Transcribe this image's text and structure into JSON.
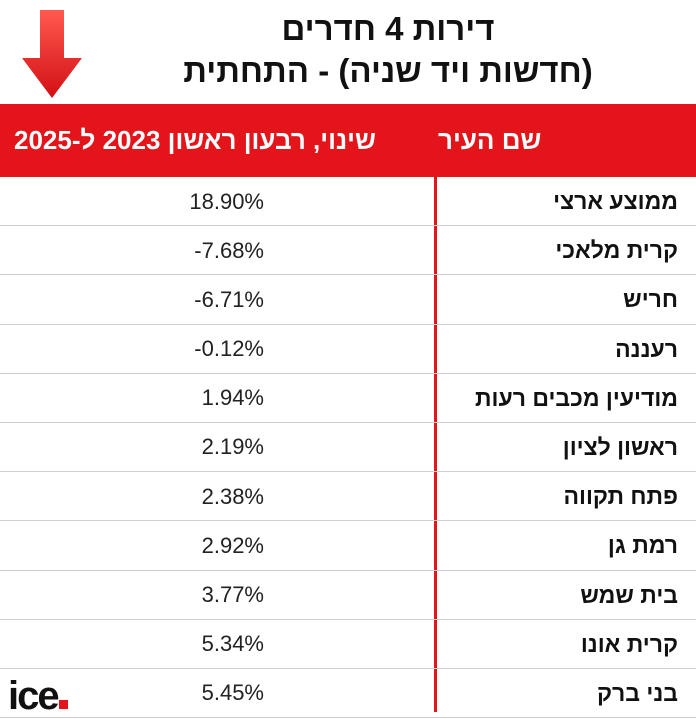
{
  "title": {
    "line1": "דירות 4 חדרים",
    "line2": "(חדשות ויד שניה) - התחתית"
  },
  "header": {
    "city_col": "שם העיר",
    "change_col": "שינוי, רבעון ראשון  2023 ל-2025"
  },
  "chart_data": {
    "type": "table",
    "columns": [
      "שם העיר",
      "שינוי, רבעון ראשון  2023 ל-2025"
    ],
    "rows": [
      {
        "city": "ממוצע ארצי",
        "change": "18.90%"
      },
      {
        "city": "קרית מלאכי",
        "change": "-7.68%"
      },
      {
        "city": "חריש",
        "change": "-6.71%"
      },
      {
        "city": "רעננה",
        "change": "-0.12%"
      },
      {
        "city": "מודיעין מכבים רעות",
        "change": "1.94%"
      },
      {
        "city": "ראשון לציון",
        "change": "2.19%"
      },
      {
        "city": "פתח תקווה",
        "change": "2.38%"
      },
      {
        "city": "רמת גן",
        "change": "2.92%"
      },
      {
        "city": "בית שמש",
        "change": "3.77%"
      },
      {
        "city": "קרית אונו",
        "change": "5.34%"
      },
      {
        "city": "בני ברק",
        "change": "5.45%"
      }
    ]
  },
  "logo": {
    "text": "ice"
  },
  "colors": {
    "accent": "#e3151b"
  },
  "icons": {
    "direction": "arrow-down-icon"
  }
}
